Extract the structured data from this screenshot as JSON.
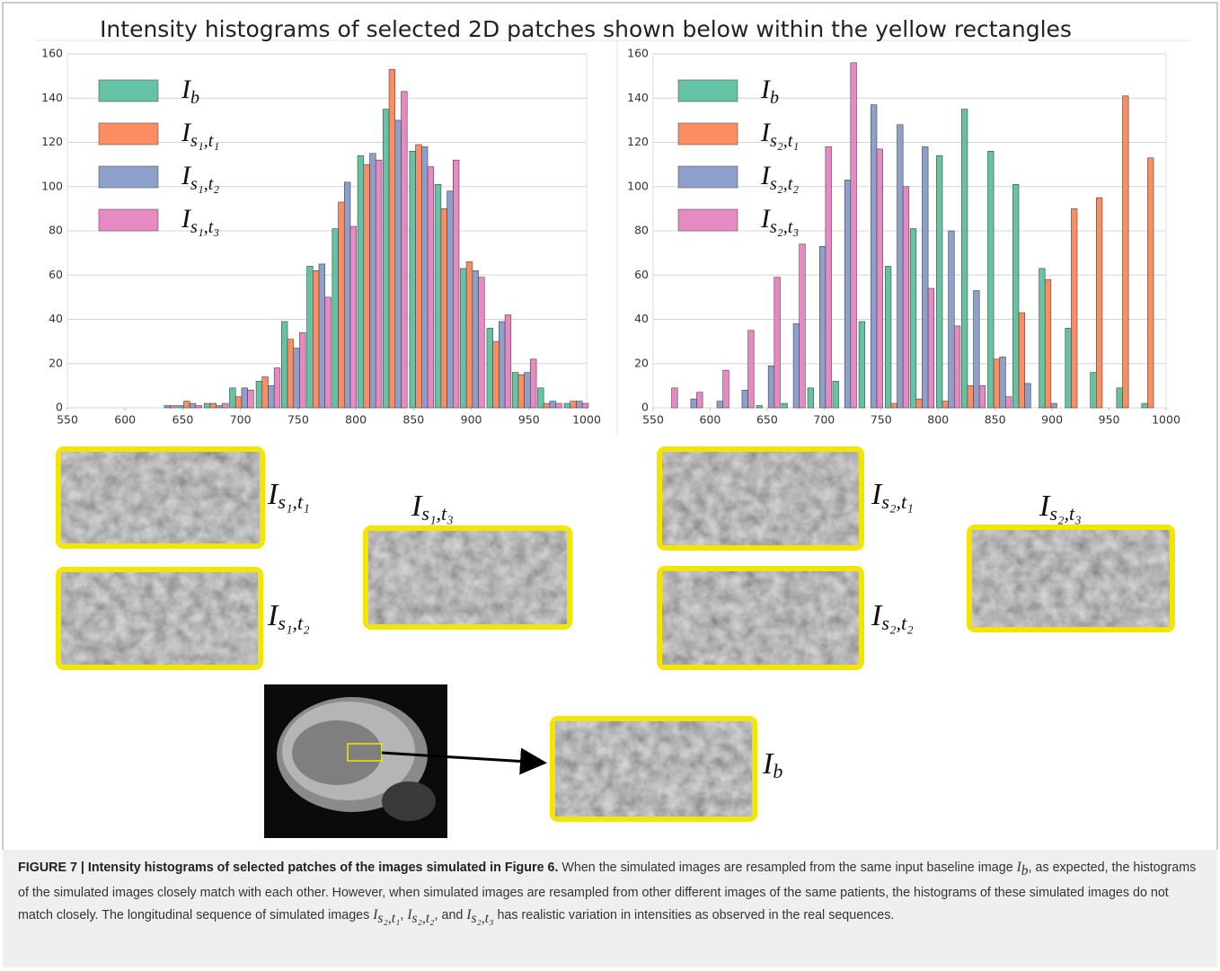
{
  "title": "Intensity histograms of selected 2D patches shown below within the yellow rectangles",
  "chart_data": [
    {
      "type": "bar",
      "grid": "y",
      "x": [
        634,
        656,
        679,
        701,
        724,
        746,
        768,
        790,
        812,
        834,
        857,
        879,
        901,
        924,
        946,
        968,
        991
      ],
      "xlim": [
        550,
        1000
      ],
      "xticks": [
        550,
        600,
        650,
        700,
        750,
        800,
        850,
        900,
        950,
        1000
      ],
      "ylim": [
        0,
        160
      ],
      "yticks": [
        0,
        20,
        40,
        60,
        80,
        100,
        120,
        140,
        160
      ],
      "legend": "upper left",
      "series": [
        {
          "name": "I",
          "subscript": "b",
          "color": "#66c2a5",
          "values": [
            0,
            1,
            2,
            9,
            12,
            39,
            64,
            81,
            114,
            135,
            116,
            101,
            63,
            36,
            16,
            9,
            2
          ]
        },
        {
          "name": "I",
          "subscript": "s₁,t₁",
          "color": "#fc8d62",
          "values": [
            0,
            3,
            2,
            5,
            14,
            31,
            62,
            93,
            110,
            153,
            119,
            90,
            66,
            30,
            15,
            2,
            3
          ]
        },
        {
          "name": "I",
          "subscript": "s₁,t₂",
          "color": "#8da0cb",
          "values": [
            1,
            2,
            1,
            9,
            10,
            27,
            65,
            102,
            115,
            130,
            118,
            98,
            62,
            39,
            16,
            3,
            3
          ]
        },
        {
          "name": "I",
          "subscript": "s₁,t₃",
          "color": "#e78ac3",
          "values": [
            1,
            1,
            2,
            8,
            18,
            34,
            50,
            82,
            112,
            143,
            109,
            112,
            59,
            42,
            22,
            2,
            2
          ]
        }
      ]
    },
    {
      "type": "bar",
      "grid": "y",
      "x": [
        561,
        583,
        606,
        628,
        651,
        673,
        696,
        718,
        741,
        764,
        786,
        809,
        831,
        854,
        876,
        899,
        922,
        944,
        967,
        989
      ],
      "xlim": [
        550,
        1000
      ],
      "xticks": [
        550,
        600,
        650,
        700,
        750,
        800,
        850,
        900,
        950,
        1000
      ],
      "ylim": [
        0,
        160
      ],
      "yticks": [
        0,
        20,
        40,
        60,
        80,
        100,
        120,
        140,
        160
      ],
      "legend": "upper left",
      "series": [
        {
          "name": "I",
          "subscript": "b",
          "color": "#66c2a5",
          "values": [
            0,
            0,
            0,
            0,
            1,
            2,
            9,
            12,
            39,
            64,
            81,
            114,
            135,
            116,
            101,
            63,
            36,
            16,
            9,
            2
          ]
        },
        {
          "name": "I",
          "subscript": "s₂,t₁",
          "color": "#fc8d62",
          "values": [
            0,
            0,
            0,
            0,
            0,
            0,
            0,
            0,
            0,
            2,
            4,
            3,
            10,
            22,
            43,
            58,
            90,
            95,
            141,
            113
          ]
        },
        {
          "name": "I",
          "subscript": "s₂,t₂",
          "color": "#8da0cb",
          "values": [
            0,
            4,
            3,
            8,
            19,
            38,
            73,
            103,
            137,
            128,
            118,
            80,
            53,
            23,
            11,
            2,
            0,
            0,
            0,
            0
          ]
        },
        {
          "name": "I",
          "subscript": "s₂,t₃",
          "color": "#e78ac3",
          "values": [
            9,
            7,
            17,
            35,
            59,
            74,
            118,
            156,
            117,
            100,
            54,
            37,
            10,
            5,
            0,
            0,
            0,
            0,
            0,
            0
          ]
        }
      ]
    }
  ],
  "patches": [
    {
      "symbol": "I",
      "subscript": "s₁,t₁"
    },
    {
      "symbol": "I",
      "subscript": "s₁,t₂"
    },
    {
      "symbol": "I",
      "subscript": "s₁,t₃"
    },
    {
      "symbol": "I",
      "subscript": "s₂,t₁"
    },
    {
      "symbol": "I",
      "subscript": "s₂,t₂"
    },
    {
      "symbol": "I",
      "subscript": "s₂,t₃"
    },
    {
      "symbol": "I",
      "subscript": "b"
    }
  ],
  "caption": {
    "heading": "FIGURE 7 | Intensity histograms of selected patches of the images simulated in Figure 6.",
    "segments": [
      {
        "text": " When the simulated images are resampled from the same input baseline image "
      },
      {
        "symbol": "I",
        "subscript": "b"
      },
      {
        "text": ", as expected, the histograms of the simulated images closely match with each other. However, when simulated images are resampled from other different images of the same patients, the histograms of these simulated images do not match closely. The longitudinal sequence of simulated images "
      },
      {
        "symbol": "I",
        "subscript": "s₂,t₁"
      },
      {
        "text": ", "
      },
      {
        "symbol": "I",
        "subscript": "s₂,t₂"
      },
      {
        "text": ", and "
      },
      {
        "symbol": "I",
        "subscript": "s₂,t₃"
      },
      {
        "text": " has realistic variation in intensities as observed in the real sequences."
      }
    ]
  }
}
